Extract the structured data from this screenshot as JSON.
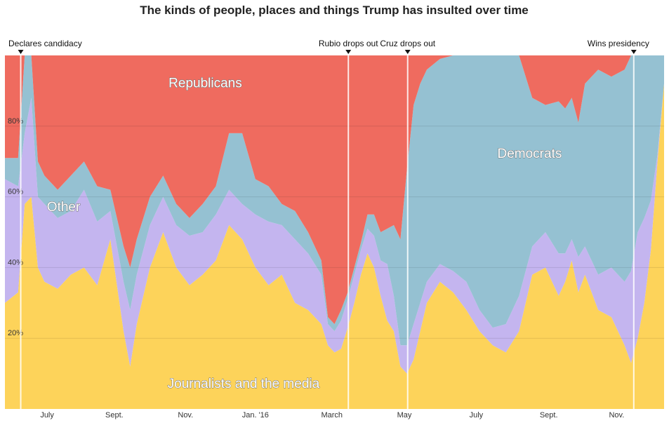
{
  "chart_data": {
    "type": "area",
    "stacked": true,
    "normalized_percent": true,
    "title": "The kinds of people, places and things Trump has insulted over time",
    "xlabel": "",
    "ylabel": "",
    "ylim": [
      0,
      100
    ],
    "xlim": [
      0,
      100
    ],
    "y_ticks": [
      {
        "value": 20,
        "label": "20%"
      },
      {
        "value": 40,
        "label": "40%"
      },
      {
        "value": 60,
        "label": "60%"
      },
      {
        "value": 80,
        "label": "80%"
      }
    ],
    "x_ticks": [
      {
        "x": 6.4,
        "label": "July"
      },
      {
        "x": 16.6,
        "label": "Sept."
      },
      {
        "x": 27.4,
        "label": "Nov."
      },
      {
        "x": 38.0,
        "label": "Jan. '16"
      },
      {
        "x": 49.6,
        "label": "March"
      },
      {
        "x": 60.6,
        "label": "May"
      },
      {
        "x": 71.5,
        "label": "July"
      },
      {
        "x": 82.5,
        "label": "Sept."
      },
      {
        "x": 92.8,
        "label": "Nov."
      }
    ],
    "events": [
      {
        "x": 2.4,
        "label": "Declares candidacy"
      },
      {
        "x": 52.1,
        "label": "Rubio drops out"
      },
      {
        "x": 61.1,
        "label": "Cruz drops out"
      },
      {
        "x": 95.4,
        "label": "Wins presidency"
      }
    ],
    "x": [
      0,
      2,
      3,
      4,
      5,
      6,
      8,
      10,
      12,
      14,
      16,
      18,
      19,
      20,
      22,
      24,
      26,
      28,
      30,
      32,
      34,
      36,
      38,
      40,
      42,
      44,
      46,
      48,
      49,
      50,
      51,
      52,
      53,
      54,
      55,
      56,
      57,
      58,
      59,
      60,
      61,
      62,
      63,
      64,
      66,
      68,
      70,
      72,
      74,
      76,
      78,
      80,
      82,
      84,
      85,
      86,
      87,
      88,
      90,
      92,
      94,
      95,
      96,
      97,
      98,
      99,
      100
    ],
    "series": [
      {
        "name": "Journalists and the media",
        "color": "#fdd35a",
        "values": [
          30,
          33,
          58,
          60,
          40,
          36,
          34,
          38,
          40,
          35,
          48,
          22,
          12,
          24,
          40,
          50,
          40,
          35,
          38,
          42,
          52,
          48,
          40,
          35,
          38,
          30,
          28,
          24,
          18,
          16,
          17,
          23,
          30,
          38,
          44,
          40,
          32,
          25,
          22,
          12,
          10,
          14,
          22,
          30,
          36,
          33,
          28,
          22,
          18,
          16,
          22,
          38,
          40,
          32,
          36,
          42,
          33,
          38,
          28,
          26,
          18,
          13,
          20,
          30,
          45,
          70,
          92
        ]
      },
      {
        "name": "Other",
        "color": "#c4b5ef",
        "values": [
          35,
          30,
          20,
          28,
          20,
          22,
          20,
          18,
          22,
          18,
          8,
          14,
          16,
          14,
          12,
          10,
          12,
          14,
          12,
          13,
          10,
          10,
          15,
          18,
          14,
          18,
          16,
          14,
          6,
          6,
          8,
          8,
          8,
          7,
          7,
          9,
          10,
          16,
          10,
          6,
          8,
          10,
          8,
          6,
          5,
          6,
          8,
          6,
          5,
          8,
          10,
          8,
          10,
          12,
          8,
          6,
          10,
          8,
          10,
          14,
          18,
          26,
          30,
          24,
          14,
          2,
          0
        ]
      },
      {
        "name": "Democrats",
        "color": "#95c1d2",
        "values": [
          6,
          8,
          22,
          12,
          10,
          8,
          8,
          10,
          8,
          10,
          6,
          10,
          12,
          10,
          8,
          6,
          6,
          5,
          8,
          8,
          16,
          20,
          10,
          10,
          6,
          8,
          6,
          4,
          2,
          2,
          3,
          2,
          2,
          2,
          4,
          6,
          8,
          10,
          20,
          30,
          50,
          62,
          62,
          60,
          58,
          61,
          64,
          72,
          77,
          76,
          68,
          42,
          36,
          43,
          41,
          40,
          38,
          46,
          58,
          54,
          60,
          61,
          50,
          46,
          41,
          28,
          8
        ]
      },
      {
        "name": "Republicans",
        "color": "#ef6b5f",
        "values": [
          29,
          29,
          0,
          0,
          30,
          34,
          38,
          34,
          30,
          37,
          38,
          54,
          60,
          52,
          40,
          34,
          42,
          46,
          42,
          37,
          22,
          22,
          35,
          37,
          42,
          44,
          50,
          58,
          74,
          76,
          72,
          67,
          60,
          53,
          45,
          45,
          50,
          49,
          48,
          52,
          32,
          14,
          8,
          4,
          1,
          0,
          0,
          0,
          0,
          0,
          0,
          12,
          14,
          13,
          15,
          12,
          19,
          8,
          4,
          6,
          4,
          0,
          0,
          0,
          0,
          0,
          0
        ]
      }
    ],
    "area_labels": [
      {
        "series": "Republicans",
        "text": "Republicans",
        "x": 30.4,
        "y": 91
      },
      {
        "series": "Democrats",
        "text": "Democrats",
        "x": 79.6,
        "y": 71
      },
      {
        "series": "Other",
        "text": "Other",
        "x": 8.9,
        "y": 56
      },
      {
        "series": "Journalists and the media",
        "text": "Journalists and the media",
        "x": 36.2,
        "y": 6
      }
    ]
  }
}
